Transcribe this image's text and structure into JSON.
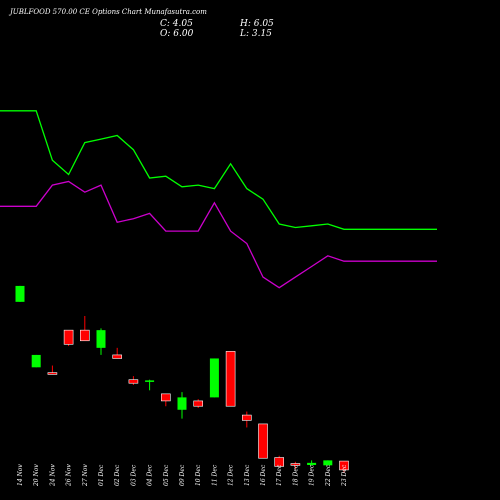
{
  "title": "JUBLFOOD 570.00 CE Options Chart Munafasutra.com",
  "ohlc": {
    "c": "C: 4.05",
    "h": "H: 6.05",
    "o": "O: 6.00",
    "l": "L: 3.15"
  },
  "colors": {
    "up": "#00ff00",
    "down": "#ff0000",
    "line_upper": "#00ff00",
    "line_lower": "#cc00cc",
    "background": "#000000"
  },
  "chart_data": {
    "type": "candlestick",
    "categories": [
      "14 Nov",
      "20 Nov",
      "24 Nov",
      "26 Nov",
      "27 Nov",
      "01 Dec",
      "02 Dec",
      "03 Dec",
      "04 Dec",
      "05 Dec",
      "09 Dec",
      "10 Dec",
      "11 Dec",
      "12 Dec",
      "13 Dec",
      "16 Dec",
      "17 Dec",
      "18 Dec",
      "19 Dec",
      "22 Dec",
      "23 Dec"
    ],
    "candles": [
      {
        "o": 46.0,
        "c": 50.5,
        "h": 50.5,
        "l": 46.0
      },
      {
        "o": 27.5,
        "c": 31.0,
        "h": 31.0,
        "l": 27.5
      },
      {
        "o": 26.0,
        "c": 25.5,
        "h": 28.0,
        "l": 25.5
      },
      {
        "o": 38.0,
        "c": 34.0,
        "h": 38.0,
        "l": 33.5
      },
      {
        "o": 38.0,
        "c": 35.0,
        "h": 42.0,
        "l": 35.0
      },
      {
        "o": 33.0,
        "c": 38.0,
        "h": 38.5,
        "l": 31.0
      },
      {
        "o": 31.0,
        "c": 30.0,
        "h": 33.0,
        "l": 30.0
      },
      {
        "o": 24.0,
        "c": 23.0,
        "h": 25.0,
        "l": 22.5
      },
      {
        "o": 23.5,
        "c": 23.8,
        "h": 24.0,
        "l": 21.0
      },
      {
        "o": 20.0,
        "c": 18.0,
        "h": 20.0,
        "l": 16.5
      },
      {
        "o": 15.5,
        "c": 19.0,
        "h": 20.5,
        "l": 13.0
      },
      {
        "o": 18.0,
        "c": 16.5,
        "h": 18.5,
        "l": 16.0
      },
      {
        "o": 19.0,
        "c": 30.0,
        "h": 30.0,
        "l": 19.0
      },
      {
        "o": 32.0,
        "c": 16.5,
        "h": 32.0,
        "l": 16.5
      },
      {
        "o": 14.0,
        "c": 12.5,
        "h": 15.0,
        "l": 10.5
      },
      {
        "o": 11.5,
        "c": 1.8,
        "h": 11.5,
        "l": 1.8
      },
      {
        "o": 2.0,
        "c": -0.5,
        "h": 2.5,
        "l": -0.5
      },
      {
        "o": 0.3,
        "c": -0.2,
        "h": 0.8,
        "l": -1.2
      },
      {
        "o": -0.1,
        "c": 0.5,
        "h": 1.2,
        "l": -0.3
      },
      {
        "o": -0.2,
        "c": 1.2,
        "h": 1.2,
        "l": -0.2
      },
      {
        "o": 1.0,
        "c": -1.5,
        "h": 1.0,
        "l": -2.3
      }
    ],
    "lines": [
      {
        "color": "#00ff00",
        "values": [
          100,
          100,
          86,
          82,
          91,
          92,
          93,
          89,
          81,
          81.5,
          78.5,
          79,
          78,
          85,
          78,
          75,
          68,
          67,
          67.5,
          68,
          66.5
        ]
      },
      {
        "color": "#cc00cc",
        "values": [
          73,
          73,
          79,
          80,
          77,
          79,
          68.5,
          69.5,
          71,
          66,
          66,
          66,
          74,
          66,
          62.5,
          53,
          50,
          53,
          56,
          59,
          57.5
        ]
      }
    ],
    "ylim": [
      -10,
      120
    ]
  }
}
